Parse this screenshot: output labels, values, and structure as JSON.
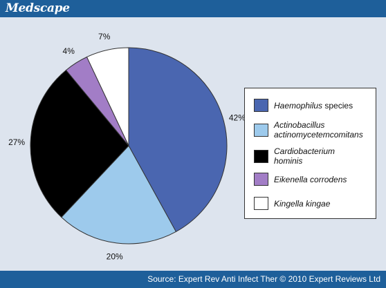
{
  "header": {
    "brand": "Medscape"
  },
  "footer": {
    "source": "Source: Expert Rev Anti Infect Ther © 2010 Expert Reviews Ltd"
  },
  "colors": {
    "bar": "#1e5f9a",
    "panel": "#dde4ee"
  },
  "chart_data": {
    "type": "pie",
    "unit": "%",
    "slices": [
      {
        "label_italic": "Haemophilus",
        "label_rest": " species",
        "value": 42,
        "display": "42%",
        "color": "#4a66b0"
      },
      {
        "label_italic": "Actinobacillus actinomycetemcomitans",
        "label_rest": "",
        "value": 20,
        "display": "20%",
        "color": "#9dcaec"
      },
      {
        "label_italic": "Cardiobacterium hominis",
        "label_rest": "",
        "value": 27,
        "display": "27%",
        "color": "#000000"
      },
      {
        "label_italic": "Eikenella corrodens",
        "label_rest": "",
        "value": 4,
        "display": "4%",
        "color": "#a27dc6"
      },
      {
        "label_italic": "Kingella kingae",
        "label_rest": "",
        "value": 7,
        "display": "7%",
        "color": "#ffffff"
      }
    ],
    "legend_position": "right"
  }
}
